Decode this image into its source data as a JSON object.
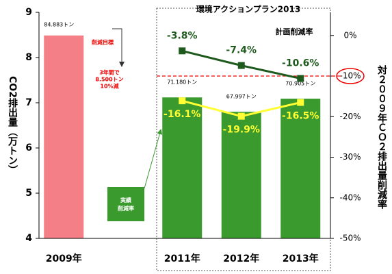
{
  "chart_data": {
    "type": "bar",
    "title": "環境アクションプラン2013",
    "y_label": "CO2排出量（万トン）",
    "y2_label": "対２００９年ＣＯ２排出量削減率",
    "categories": [
      "2009年",
      null,
      "2011年",
      "2012年",
      "2013年"
    ],
    "values": [
      8.4883,
      null,
      7.118,
      6.7997,
      7.0905
    ],
    "value_labels": [
      "84.883トン",
      null,
      "71.180トン",
      "67.997トン",
      "70.905トン"
    ],
    "colors": [
      "#f47f86",
      null,
      "#3a9a2e",
      "#3a9a2e",
      "#3a9a2e"
    ],
    "ylim": [
      4,
      9
    ],
    "yticks": [
      4,
      5,
      6,
      7,
      8,
      9
    ],
    "y2lim": [
      -50,
      5.7
    ],
    "y2ticks": [
      {
        "value": 0,
        "label": "0%"
      },
      {
        "value": -10,
        "label": "-10%"
      },
      {
        "value": -20,
        "label": "-20%"
      },
      {
        "value": -30,
        "label": "-30%"
      },
      {
        "value": -40,
        "label": "-40%"
      },
      {
        "value": -50,
        "label": "-50%"
      }
    ],
    "series": [
      {
        "name": "計画削減率",
        "color": "#1e5a1e",
        "axis": "y2",
        "values": [
          null,
          null,
          -3.8,
          -7.4,
          -10.6
        ],
        "value_labels": [
          null,
          null,
          "-3.8%",
          "-7.4%",
          "-10.6%"
        ]
      },
      {
        "name": "実績\n削減率",
        "color": "#ffff33",
        "axis": "y2",
        "values": [
          null,
          null,
          -16.1,
          -19.9,
          -16.5
        ],
        "value_labels": [
          null,
          null,
          "-16.1%",
          "-19.9%",
          "-16.5%"
        ]
      }
    ],
    "target": -10,
    "annotations": [
      "削減目標",
      "3年間で",
      "8.500トン",
      "10%減"
    ]
  }
}
